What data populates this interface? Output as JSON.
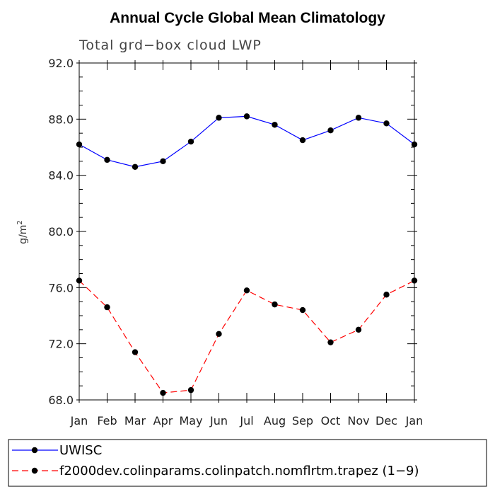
{
  "chart_data": {
    "type": "line",
    "title": "Annual Cycle Global Mean Climatology",
    "subtitle": "Total grd−box cloud LWP",
    "ylabel": "g/m",
    "ylabel_sup": "2",
    "ylim": [
      68.0,
      92.0
    ],
    "yticks": [
      "68.0",
      "72.0",
      "76.0",
      "80.0",
      "84.0",
      "88.0",
      "92.0"
    ],
    "categories": [
      "Jan",
      "Feb",
      "Mar",
      "Apr",
      "May",
      "Jun",
      "Jul",
      "Aug",
      "Sep",
      "Oct",
      "Nov",
      "Dec",
      "Jan"
    ],
    "series": [
      {
        "name": "UWISC",
        "color": "#0000ff",
        "dashed": false,
        "values": [
          86.2,
          85.1,
          84.6,
          85.0,
          86.4,
          88.1,
          88.2,
          87.6,
          86.5,
          87.2,
          88.1,
          87.7,
          86.2
        ]
      },
      {
        "name": "f2000dev.colinparams.colinpatch.nomflrtm.trapez (1−9)",
        "color": "#ff0000",
        "dashed": true,
        "values": [
          76.5,
          74.6,
          71.4,
          68.5,
          68.7,
          72.7,
          75.8,
          74.8,
          74.4,
          72.1,
          73.0,
          75.5,
          76.5
        ]
      }
    ]
  }
}
